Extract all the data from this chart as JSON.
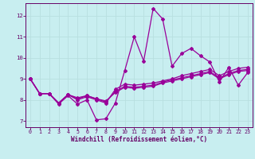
{
  "xlabel": "Windchill (Refroidissement éolien,°C)",
  "bg_color": "#c8eef0",
  "line_color": "#990099",
  "grid_color": "#b8dfe0",
  "axis_color": "#660066",
  "tick_color": "#660066",
  "label_color": "#660066",
  "xlim": [
    -0.5,
    23.5
  ],
  "ylim": [
    6.7,
    12.6
  ],
  "xticks": [
    0,
    1,
    2,
    3,
    4,
    5,
    6,
    7,
    8,
    9,
    10,
    11,
    12,
    13,
    14,
    15,
    16,
    17,
    18,
    19,
    20,
    21,
    22,
    23
  ],
  "yticks": [
    7,
    8,
    9,
    10,
    11,
    12
  ],
  "series": [
    {
      "x": [
        0,
        1,
        2,
        3,
        4,
        5,
        6,
        7,
        8,
        9,
        10,
        11,
        12,
        13,
        14,
        15,
        16,
        17,
        18,
        19,
        20,
        21,
        22,
        23
      ],
      "y": [
        9.0,
        8.3,
        8.3,
        7.8,
        8.2,
        7.8,
        8.0,
        7.05,
        7.1,
        7.85,
        9.4,
        11.0,
        9.85,
        12.35,
        11.85,
        9.6,
        10.2,
        10.45,
        10.1,
        9.8,
        8.85,
        9.55,
        8.7,
        9.3
      ]
    },
    {
      "x": [
        0,
        1,
        2,
        3,
        4,
        5,
        6,
        7,
        8,
        9,
        10,
        11,
        12,
        13,
        14,
        15,
        16,
        17,
        18,
        19,
        20,
        21,
        22,
        23
      ],
      "y": [
        9.0,
        8.3,
        8.3,
        7.85,
        8.25,
        8.0,
        8.15,
        8.0,
        7.85,
        8.5,
        8.75,
        8.7,
        8.75,
        8.8,
        8.9,
        9.0,
        9.15,
        9.25,
        9.35,
        9.45,
        9.15,
        9.35,
        9.5,
        9.55
      ]
    },
    {
      "x": [
        0,
        1,
        2,
        3,
        4,
        5,
        6,
        7,
        8,
        9,
        10,
        11,
        12,
        13,
        14,
        15,
        16,
        17,
        18,
        19,
        20,
        21,
        22,
        23
      ],
      "y": [
        9.0,
        8.3,
        8.3,
        7.85,
        8.25,
        8.05,
        8.2,
        8.05,
        7.9,
        8.4,
        8.65,
        8.6,
        8.65,
        8.7,
        8.85,
        8.95,
        9.05,
        9.15,
        9.25,
        9.35,
        9.05,
        9.25,
        9.4,
        9.45
      ]
    },
    {
      "x": [
        0,
        1,
        2,
        3,
        4,
        5,
        6,
        7,
        8,
        9,
        10,
        11,
        12,
        13,
        14,
        15,
        16,
        17,
        18,
        19,
        20,
        21,
        22,
        23
      ],
      "y": [
        9.0,
        8.3,
        8.3,
        7.85,
        8.25,
        8.1,
        8.2,
        8.05,
        7.95,
        8.35,
        8.6,
        8.55,
        8.6,
        8.65,
        8.8,
        8.9,
        9.0,
        9.1,
        9.2,
        9.3,
        9.0,
        9.2,
        9.35,
        9.4
      ]
    }
  ],
  "marker": "D",
  "markersize": 2.0,
  "linewidth": 0.9
}
